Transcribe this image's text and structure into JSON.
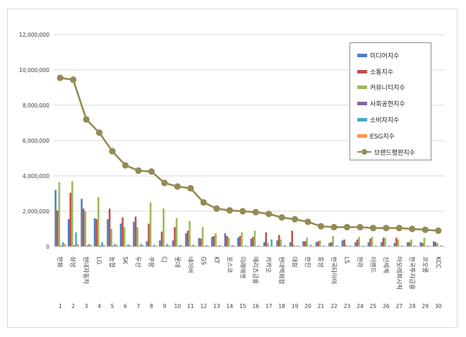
{
  "chart_data": {
    "type": "bar",
    "ylim": [
      0,
      12000000
    ],
    "yticks": [
      "0",
      "2,000,000",
      "4,000,000",
      "6,000,000",
      "8,000,000",
      "10,000,000",
      "12,000,000"
    ],
    "ytick_values": [
      0,
      2000000,
      4000000,
      6000000,
      8000000,
      10000000,
      12000000
    ],
    "categories": [
      "한화",
      "삼성",
      "현대자동차",
      "LG",
      "농협",
      "SK",
      "두산",
      "쿠팡",
      "CJ",
      "롯데",
      "네이버",
      "GS",
      "KT",
      "포스코",
      "미래에셋",
      "메리츠금융",
      "카카오",
      "현대백화점",
      "대림",
      "한진",
      "효성",
      "한국타이어",
      "LS",
      "한라",
      "이랜드",
      "신세계",
      "아모레퍼시픽",
      "한국투자금융",
      "코오롱",
      "KCC"
    ],
    "ranks": [
      "1",
      "2",
      "3",
      "4",
      "5",
      "6",
      "7",
      "8",
      "9",
      "10",
      "11",
      "12",
      "13",
      "14",
      "15",
      "16",
      "17",
      "18",
      "19",
      "20",
      "21",
      "22",
      "23",
      "24",
      "25",
      "26",
      "27",
      "28",
      "29",
      "30"
    ],
    "series": [
      {
        "name": "미디어지수",
        "color": "#4f81bd",
        "values": [
          3200000,
          1550000,
          2700000,
          1600000,
          1550000,
          1300000,
          1400000,
          300000,
          350000,
          350000,
          750000,
          480000,
          550000,
          750000,
          500000,
          450000,
          250000,
          350000,
          250000,
          300000,
          250000,
          200000,
          350000,
          250000,
          250000,
          250000,
          200000,
          250000,
          250000,
          300000
        ]
      },
      {
        "name": "소통지수",
        "color": "#c0504d",
        "values": [
          2050000,
          3050000,
          2150000,
          1550000,
          2150000,
          1650000,
          1700000,
          1300000,
          850000,
          1100000,
          900000,
          450000,
          600000,
          600000,
          600000,
          550000,
          800000,
          650000,
          900000,
          300000,
          300000,
          250000,
          400000,
          400000,
          450000,
          500000,
          500000,
          250000,
          200000,
          250000
        ]
      },
      {
        "name": "커뮤니티지수",
        "color": "#9bbb59",
        "values": [
          3650000,
          3700000,
          2000000,
          2800000,
          1000000,
          1100000,
          1100000,
          2500000,
          2150000,
          1600000,
          1450000,
          1100000,
          750000,
          500000,
          800000,
          900000,
          200000,
          400000,
          100000,
          500000,
          350000,
          600000,
          100000,
          550000,
          550000,
          500000,
          400000,
          400000,
          500000,
          200000
        ]
      },
      {
        "name": "사회공헌지수",
        "color": "#8064a2",
        "values": [
          60000,
          70000,
          60000,
          55000,
          50000,
          40000,
          45000,
          30000,
          40000,
          40000,
          35000,
          30000,
          35000,
          30000,
          25000,
          25000,
          25000,
          25000,
          20000,
          20000,
          20000,
          20000,
          20000,
          20000,
          20000,
          20000,
          20000,
          20000,
          20000,
          20000
        ]
      },
      {
        "name": "소비자지수",
        "color": "#4bacc6",
        "values": [
          250000,
          800000,
          150000,
          250000,
          150000,
          120000,
          150000,
          100000,
          150000,
          100000,
          100000,
          80000,
          80000,
          80000,
          60000,
          60000,
          400000,
          80000,
          60000,
          100000,
          60000,
          60000,
          60000,
          60000,
          60000,
          60000,
          60000,
          60000,
          60000,
          60000
        ]
      },
      {
        "name": "ESG지수",
        "color": "#f79646",
        "values": [
          150000,
          150000,
          100000,
          100000,
          80000,
          80000,
          80000,
          50000,
          80000,
          60000,
          50000,
          50000,
          40000,
          40000,
          40000,
          40000,
          30000,
          30000,
          30000,
          30000,
          30000,
          30000,
          30000,
          30000,
          30000,
          30000,
          30000,
          30000,
          30000,
          30000
        ]
      }
    ],
    "line": {
      "name": "브랜드평판지수",
      "color": "#948a54",
      "values": [
        9550000,
        9450000,
        7200000,
        6450000,
        5400000,
        4600000,
        4300000,
        4250000,
        3600000,
        3400000,
        3300000,
        2500000,
        2150000,
        2050000,
        2000000,
        1950000,
        1850000,
        1650000,
        1550000,
        1400000,
        1150000,
        1100000,
        1100000,
        1100000,
        1050000,
        1050000,
        1050000,
        1000000,
        950000,
        900000
      ]
    }
  }
}
